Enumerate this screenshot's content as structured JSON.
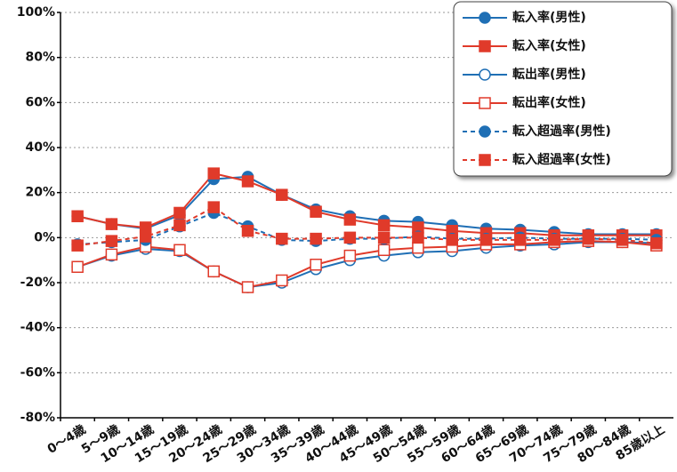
{
  "chart_data": {
    "type": "line",
    "categories": [
      "0〜4歳",
      "5〜9歳",
      "10〜14歳",
      "15〜19歳",
      "20〜24歳",
      "25〜29歳",
      "30〜34歳",
      "35〜39歳",
      "40〜44歳",
      "45〜49歳",
      "50〜54歳",
      "55〜59歳",
      "60〜64歳",
      "65〜69歳",
      "70〜74歳",
      "75〜79歳",
      "80〜84歳",
      "85歳以上"
    ],
    "ylim": [
      -80,
      100
    ],
    "yticks": [
      {
        "value": -80,
        "label": "-80%"
      },
      {
        "value": -60,
        "label": "-60%"
      },
      {
        "value": -40,
        "label": "-40%"
      },
      {
        "value": -20,
        "label": "-20%"
      },
      {
        "value": 0,
        "label": "0%"
      },
      {
        "value": 20,
        "label": "20%"
      },
      {
        "value": 40,
        "label": "40%"
      },
      {
        "value": 60,
        "label": "60%"
      },
      {
        "value": 80,
        "label": "80%"
      },
      {
        "value": 100,
        "label": "100%"
      }
    ],
    "grid": true,
    "legend": "upper right",
    "series": [
      {
        "name": "転入率(男性)",
        "color": "#1f6fb5",
        "marker": "circle",
        "filled": true,
        "dashed": false,
        "values": [
          9.5,
          6,
          4,
          10,
          26,
          27,
          19,
          12.5,
          9.5,
          7.5,
          7,
          5.5,
          4,
          3.5,
          2.5,
          1.5,
          1.5,
          1.5
        ]
      },
      {
        "name": "転入率(女性)",
        "color": "#e03a2a",
        "marker": "square",
        "filled": true,
        "dashed": false,
        "values": [
          9.5,
          6,
          4.5,
          11,
          28.5,
          25,
          19,
          11.5,
          8,
          5.5,
          4.5,
          3,
          2,
          2,
          1,
          1,
          1,
          1
        ]
      },
      {
        "name": "転出率(男性)",
        "color": "#1f6fb5",
        "marker": "circle",
        "filled": false,
        "dashed": false,
        "values": [
          -13,
          -8,
          -5,
          -6,
          -15,
          -22,
          -20,
          -14,
          -10,
          -8,
          -6.5,
          -6,
          -4.5,
          -3.5,
          -3,
          -2,
          -2,
          -2.5
        ]
      },
      {
        "name": "転出率(女性)",
        "color": "#e03a2a",
        "marker": "square",
        "filled": false,
        "dashed": false,
        "values": [
          -13,
          -7.5,
          -4,
          -5.5,
          -15,
          -22,
          -19,
          -12,
          -8,
          -5.5,
          -4.5,
          -4,
          -3,
          -3,
          -2,
          -1.5,
          -2,
          -3.5
        ]
      },
      {
        "name": "転入超過率(男性)",
        "color": "#1f6fb5",
        "marker": "circle",
        "filled": true,
        "dashed": true,
        "values": [
          -3,
          -2,
          -1,
          5,
          11,
          5,
          -1,
          -1.5,
          -0.5,
          -0.5,
          0.5,
          -0.5,
          -0.5,
          0,
          -0.5,
          -0.5,
          -0.5,
          -1
        ]
      },
      {
        "name": "転入超過率(女性)",
        "color": "#e03a2a",
        "marker": "square",
        "filled": true,
        "dashed": true,
        "values": [
          -3.5,
          -1.5,
          0.5,
          5.5,
          13.5,
          3,
          -0.5,
          -0.5,
          0,
          0,
          0,
          -1,
          -1,
          -1,
          -1,
          -0.5,
          -1,
          -2.5
        ]
      }
    ]
  }
}
